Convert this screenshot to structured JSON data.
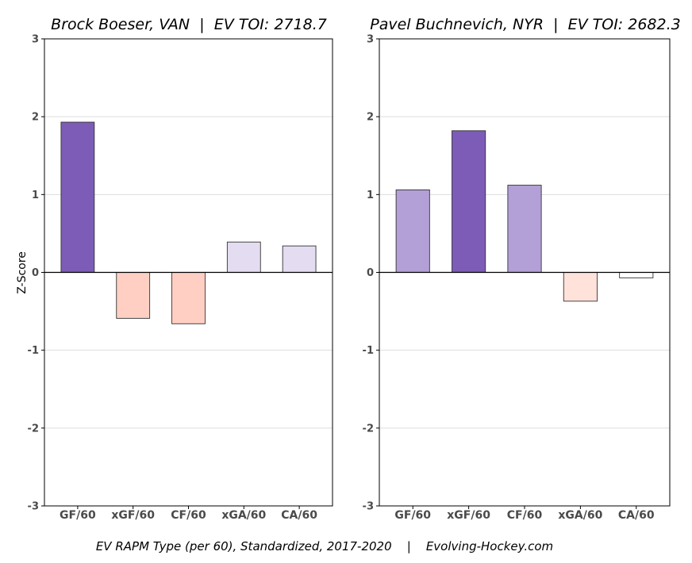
{
  "footer": {
    "text": "EV RAPM Type (per 60), Standardized, 2017-2020    |    Evolving-Hockey.com"
  },
  "colors": {
    "strong_positive": "#7d5cb8",
    "medium_positive": "#b3a0d6",
    "light_positive": "#e4dcf1",
    "light_negative": "#ffcfc3",
    "pale_negative": "#ffe2da",
    "near_zero": "#ffffff",
    "bar_edge": "#333333",
    "grid": "#dddddd"
  },
  "chart_data": [
    {
      "type": "bar",
      "title": "Brock Boeser, VAN  |  EV TOI: 2718.7",
      "ylabel": "Z-Score",
      "xlabel": "",
      "ylim": [
        -3,
        3
      ],
      "yticks": [
        3,
        2,
        1,
        0,
        -1,
        -2,
        -3
      ],
      "grid": true,
      "categories": [
        "GF/60",
        "xGF/60",
        "CF/60",
        "xGA/60",
        "CA/60"
      ],
      "values": [
        1.93,
        -0.59,
        -0.66,
        0.39,
        0.34
      ],
      "bar_colors": [
        "#7d5cb8",
        "#ffcfc3",
        "#ffcfc3",
        "#e4dcf1",
        "#e4dcf1"
      ]
    },
    {
      "type": "bar",
      "title": "Pavel Buchnevich, NYR  |  EV TOI: 2682.3",
      "ylabel": "",
      "xlabel": "",
      "ylim": [
        -3,
        3
      ],
      "yticks": [
        3,
        2,
        1,
        0,
        -1,
        -2,
        -3
      ],
      "grid": true,
      "categories": [
        "GF/60",
        "xGF/60",
        "CF/60",
        "xGA/60",
        "CA/60"
      ],
      "values": [
        1.06,
        1.82,
        1.12,
        -0.37,
        -0.07
      ],
      "bar_colors": [
        "#b3a0d6",
        "#7d5cb8",
        "#b3a0d6",
        "#ffe2da",
        "#ffffff"
      ]
    }
  ]
}
